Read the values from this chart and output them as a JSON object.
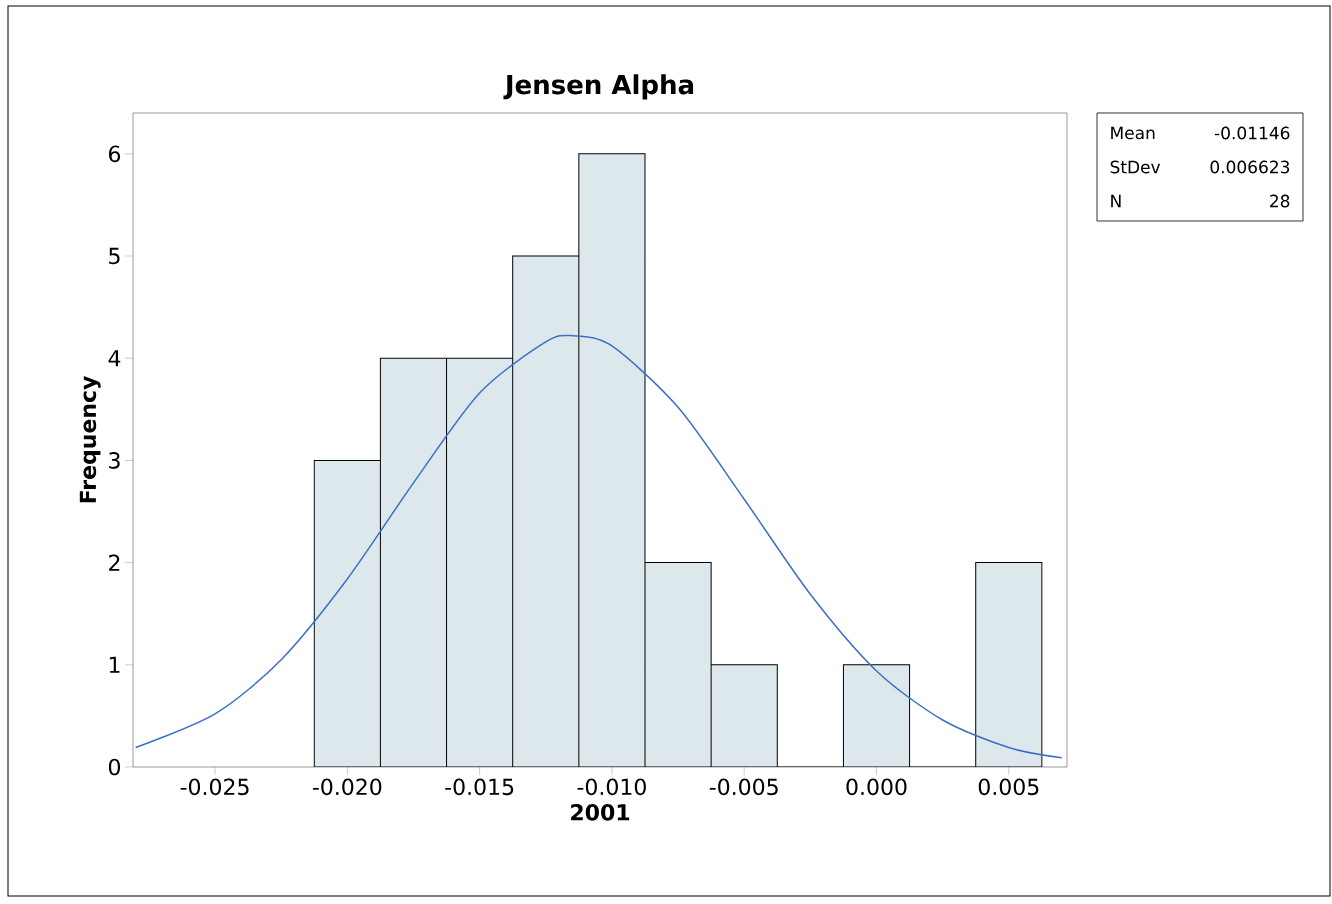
{
  "chart_data": {
    "type": "histogram",
    "title": "Jensen Alpha",
    "xlabel": "2001",
    "ylabel": "Frequency",
    "bins": [
      -0.02125,
      -0.01875,
      -0.01625,
      -0.01375,
      -0.01125,
      -0.00875,
      -0.00625,
      -0.00375,
      -0.00125,
      0.00125,
      0.00375,
      0.00625
    ],
    "values": [
      3,
      4,
      4,
      5,
      6,
      2,
      1,
      0,
      1,
      0,
      2
    ],
    "color": "#dde8ec",
    "series": [
      {
        "type": "line",
        "color": "#3d6fc8",
        "x": [
          -0.028,
          -0.025,
          -0.0225,
          -0.02,
          -0.0175,
          -0.015,
          -0.0125,
          -0.01146,
          -0.01,
          -0.0075,
          -0.005,
          -0.0025,
          0.0,
          0.0025,
          0.005,
          0.007
        ],
        "values": [
          0.19,
          0.52,
          1.05,
          1.84,
          2.78,
          3.66,
          4.16,
          4.22,
          4.12,
          3.52,
          2.62,
          1.69,
          0.94,
          0.46,
          0.19,
          0.09
        ]
      }
    ],
    "xlim": [
      -0.0281,
      0.0072
    ],
    "ylim": [
      0,
      6.4
    ],
    "xticks": [
      {
        "value": -0.025,
        "label": "-0.025"
      },
      {
        "value": -0.02,
        "label": "-0.020"
      },
      {
        "value": -0.015,
        "label": "-0.015"
      },
      {
        "value": -0.01,
        "label": "-0.010"
      },
      {
        "value": -0.005,
        "label": "-0.005"
      },
      {
        "value": 0,
        "label": "0.000"
      },
      {
        "value": 0.005,
        "label": "0.005"
      }
    ],
    "yticks": [
      0,
      1,
      2,
      3,
      4,
      5,
      6
    ],
    "annotations": [
      "Mean",
      "-0.01146",
      "StDev",
      "0.006623",
      "N",
      "28"
    ]
  }
}
